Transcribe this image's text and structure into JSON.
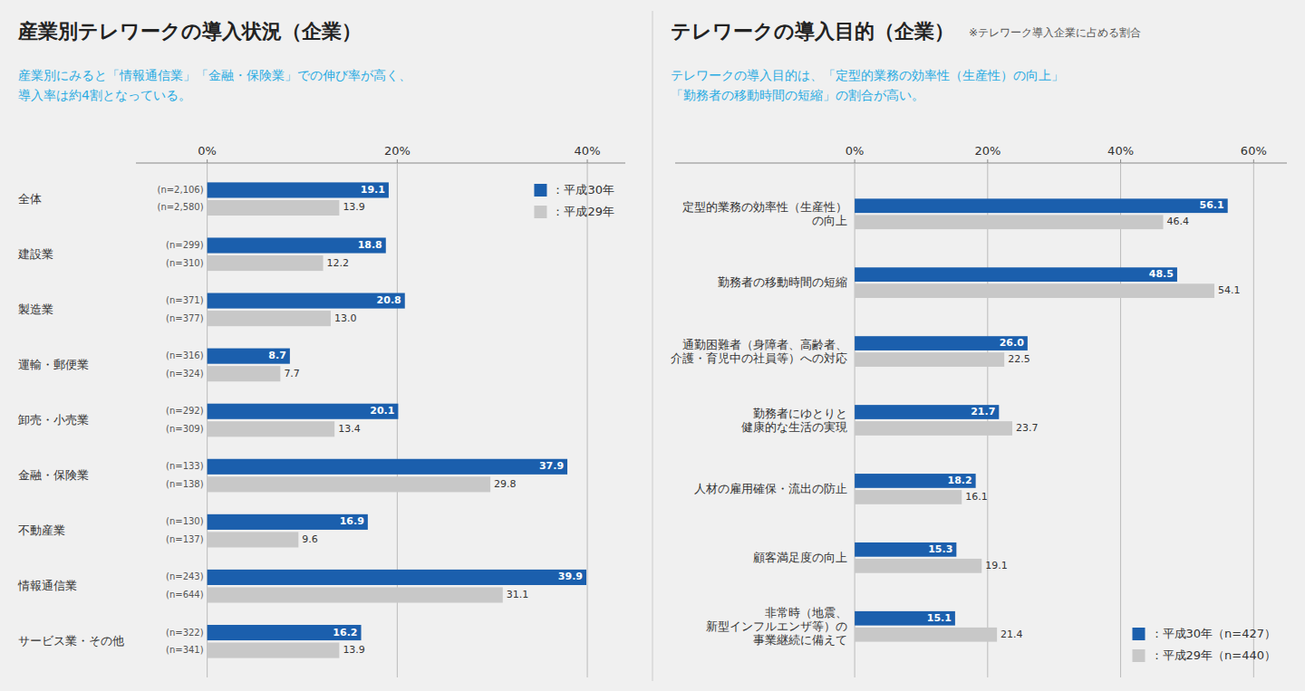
{
  "chart_data": [
    {
      "type": "bar",
      "orientation": "horizontal",
      "title": "産業別テレワークの導入状況（企業）",
      "subtitle": "産業別にみると「情報通信業」「金融・保険業」での伸び率が高く、\n導入率は約4割となっている。",
      "categories": [
        "全体",
        "建設業",
        "製造業",
        "運輸・郵便業",
        "卸売・小売業",
        "金融・保険業",
        "不動産業",
        "情報通信業",
        "サービス業・その他"
      ],
      "series": [
        {
          "name": "：平成30年",
          "color": "#1B5FAD",
          "values": [
            19.1,
            18.8,
            20.8,
            8.7,
            20.1,
            37.9,
            16.9,
            39.9,
            16.2
          ],
          "annotations": [
            "(n=2,106)",
            "(n=299)",
            "(n=371)",
            "(n=316)",
            "(n=292)",
            "(n=133)",
            "(n=130)",
            "(n=243)",
            "(n=322)"
          ]
        },
        {
          "name": "：平成29年",
          "color": "#C8C8C8",
          "values": [
            13.9,
            12.2,
            13.0,
            7.7,
            13.4,
            29.8,
            9.6,
            31.1,
            13.9
          ],
          "value_labels": [
            "13.9",
            "12.2",
            "13.0",
            "7.7",
            "13.4",
            "29.8",
            "9.6",
            "31.1",
            "13.9"
          ],
          "annotations": [
            "(n=2,580)",
            "(n=310)",
            "(n=377)",
            "(n=324)",
            "(n=309)",
            "(n=138)",
            "(n=137)",
            "(n=644)",
            "(n=341)"
          ]
        }
      ],
      "xlim": [
        -7.5,
        44
      ],
      "xticks": [
        {
          "value": 0,
          "label": "0%"
        },
        {
          "value": 20,
          "label": "20%"
        },
        {
          "value": 40,
          "label": "40%"
        }
      ],
      "grid": true,
      "legend": "upper right",
      "data_labels": true
    },
    {
      "type": "bar",
      "orientation": "horizontal",
      "title": "テレワークの導入目的（企業）",
      "subtitle": "テレワークの導入目的は、「定型的業務の効率性（生産性）の向上」\n「勤務者の移動時間の短縮」の割合が高い。",
      "annotations": [
        "※テレワーク導入企業に占める割合"
      ],
      "categories": [
        "定型的業務の効率性（生産性）\nの向上",
        "勤務者の移動時間の短縮",
        "通勤困難者（身障者、高齢者、\n介護・育児中の社員等）への対応",
        "勤務者にゆとりと\n健康的な生活の実現",
        "人材の雇用確保・流出の防止",
        "顧客満足度の向上",
        "非常時（地震、\n新型インフルエンザ等）の\n事業継続に備えて"
      ],
      "series": [
        {
          "name": "：平成30年（n=427）",
          "color": "#1B5FAD",
          "values": [
            56.1,
            48.5,
            26.0,
            21.7,
            18.2,
            15.3,
            15.1
          ],
          "value_labels": [
            "56.1",
            "48.5",
            "26.0",
            "21.7",
            "18.2",
            "15.3",
            "15.1"
          ]
        },
        {
          "name": "：平成29年（n=440）",
          "color": "#C8C8C8",
          "values": [
            46.4,
            54.1,
            22.5,
            23.7,
            16.1,
            19.1,
            21.4
          ]
        }
      ],
      "xlim": [
        -27,
        65
      ],
      "xticks": [
        {
          "value": 0,
          "label": "0%"
        },
        {
          "value": 20,
          "label": "20%"
        },
        {
          "value": 40,
          "label": "40%"
        },
        {
          "value": 60,
          "label": "60%"
        }
      ],
      "grid": true,
      "legend": "lower right",
      "data_labels": true
    }
  ]
}
